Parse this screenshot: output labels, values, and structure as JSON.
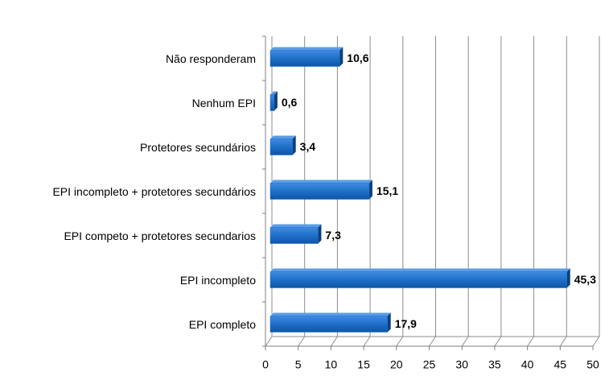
{
  "chart_data": {
    "type": "bar",
    "orientation": "horizontal",
    "categories": [
      "Não responderam",
      "Nenhum EPI",
      "Protetores secundários",
      "EPI incompleto + protetores secundários",
      "EPI competo + protetores secundarios",
      "EPI incompleto",
      "EPI completo"
    ],
    "values": [
      10.6,
      0.6,
      3.4,
      15.1,
      7.3,
      45.3,
      17.9
    ],
    "value_labels": [
      "10,6",
      "0,6",
      "3,4",
      "15,1",
      "7,3",
      "45,3",
      "17,9"
    ],
    "color": "#1f6fc8",
    "xlim": [
      0,
      50
    ],
    "xticks": [
      0,
      5,
      10,
      15,
      20,
      25,
      30,
      35,
      40,
      45,
      50
    ],
    "grid": true
  }
}
